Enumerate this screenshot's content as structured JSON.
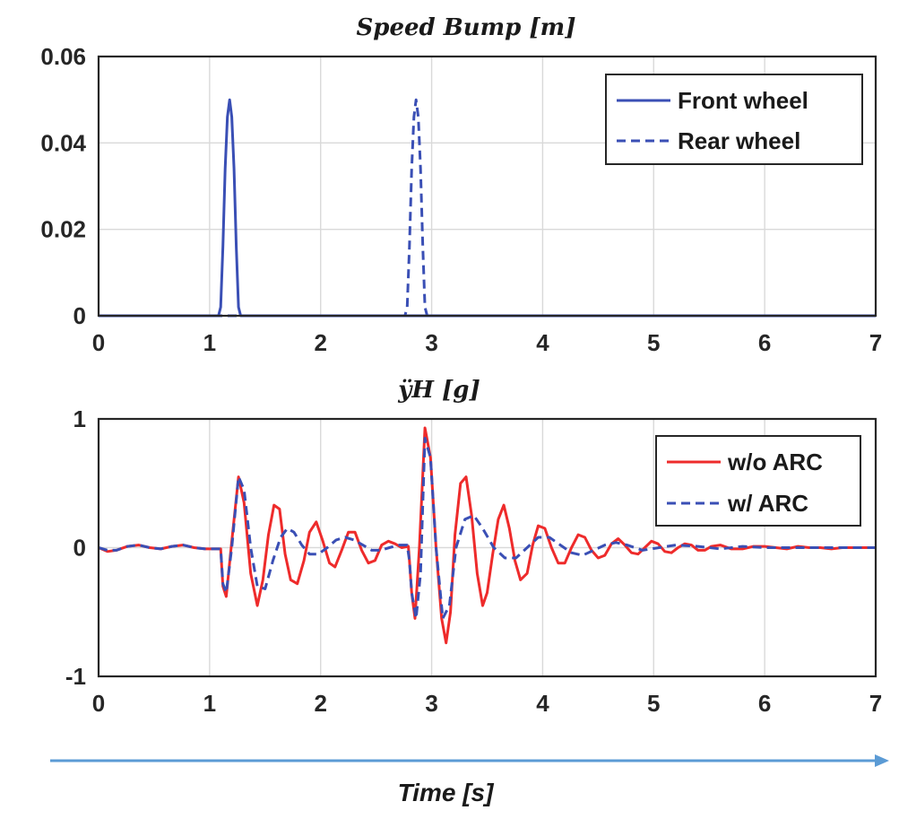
{
  "chart_data": [
    {
      "type": "line",
      "title": "Speed Bump [m]",
      "xlabel": "",
      "ylabel": "",
      "xlim": [
        0,
        7
      ],
      "ylim": [
        0,
        0.06
      ],
      "xticks": [
        0,
        1,
        2,
        3,
        4,
        5,
        6,
        7
      ],
      "xtick_labels": [
        "0",
        "1",
        "2",
        "3",
        "4",
        "5",
        "6",
        "7"
      ],
      "yticks": [
        0,
        0.02,
        0.04,
        0.06
      ],
      "ytick_labels": [
        "0",
        "0.02",
        "0.04",
        "0.06"
      ],
      "grid": true,
      "legend_position": "top-right",
      "series": [
        {
          "name": "Front wheel",
          "color": "#3a4fb5",
          "style": "solid",
          "x": [
            0,
            1.08,
            1.1,
            1.12,
            1.14,
            1.16,
            1.18,
            1.2,
            1.22,
            1.24,
            1.26,
            1.28,
            1.3,
            7
          ],
          "y": [
            0,
            0,
            0.002,
            0.016,
            0.034,
            0.046,
            0.05,
            0.046,
            0.034,
            0.016,
            0.002,
            0,
            0,
            0
          ]
        },
        {
          "name": "Rear wheel",
          "color": "#3a4fb5",
          "style": "dashed",
          "x": [
            0,
            2.76,
            2.78,
            2.8,
            2.82,
            2.84,
            2.86,
            2.88,
            2.9,
            2.92,
            2.94,
            2.96,
            2.98,
            7
          ],
          "y": [
            0,
            0,
            0.002,
            0.016,
            0.034,
            0.046,
            0.05,
            0.046,
            0.034,
            0.016,
            0.002,
            0,
            0,
            0
          ]
        }
      ]
    },
    {
      "type": "line",
      "title": "ÿH [g]",
      "xlabel": "Time [s]",
      "ylabel": "",
      "xlim": [
        0,
        7
      ],
      "ylim": [
        -1,
        1
      ],
      "xticks": [
        0,
        1,
        2,
        3,
        4,
        5,
        6,
        7
      ],
      "xtick_labels": [
        "0",
        "1",
        "2",
        "3",
        "4",
        "5",
        "6",
        "7"
      ],
      "yticks": [
        -1,
        0,
        1
      ],
      "ytick_labels": [
        "-1",
        "0",
        "1"
      ],
      "grid": true,
      "legend_position": "top-right",
      "series": [
        {
          "name": "w/o ARC",
          "color": "#ee2b2b",
          "style": "solid",
          "x": [
            0,
            0.08,
            0.16,
            0.26,
            0.36,
            0.46,
            0.56,
            0.66,
            0.76,
            0.86,
            0.96,
            1.06,
            1.1,
            1.12,
            1.15,
            1.2,
            1.26,
            1.31,
            1.37,
            1.43,
            1.48,
            1.53,
            1.58,
            1.63,
            1.68,
            1.73,
            1.79,
            1.85,
            1.9,
            1.96,
            2.02,
            2.08,
            2.13,
            2.19,
            2.25,
            2.31,
            2.37,
            2.43,
            2.49,
            2.55,
            2.61,
            2.67,
            2.73,
            2.79,
            2.8,
            2.82,
            2.85,
            2.89,
            2.94,
            2.99,
            3.04,
            3.09,
            3.13,
            3.17,
            3.21,
            3.26,
            3.31,
            3.36,
            3.41,
            3.46,
            3.5,
            3.55,
            3.6,
            3.65,
            3.7,
            3.75,
            3.8,
            3.86,
            3.91,
            3.96,
            4.02,
            4.08,
            4.14,
            4.2,
            4.26,
            4.32,
            4.38,
            4.44,
            4.5,
            4.56,
            4.62,
            4.68,
            4.74,
            4.8,
            4.86,
            4.92,
            4.98,
            5.04,
            5.1,
            5.16,
            5.22,
            5.28,
            5.34,
            5.4,
            5.46,
            5.52,
            5.6,
            5.7,
            5.8,
            5.9,
            6.0,
            6.1,
            6.2,
            6.3,
            6.4,
            6.5,
            6.6,
            6.7,
            6.8,
            6.9,
            7.0
          ],
          "y": [
            0,
            -0.03,
            -0.02,
            0.01,
            0.02,
            0.0,
            -0.01,
            0.01,
            0.02,
            0.0,
            -0.01,
            -0.01,
            -0.01,
            -0.3,
            -0.38,
            0.05,
            0.55,
            0.35,
            -0.2,
            -0.45,
            -0.25,
            0.1,
            0.33,
            0.3,
            -0.05,
            -0.25,
            -0.28,
            -0.1,
            0.12,
            0.2,
            0.05,
            -0.12,
            -0.15,
            -0.02,
            0.12,
            0.12,
            -0.02,
            -0.12,
            -0.1,
            0.02,
            0.05,
            0.03,
            0.0,
            0.01,
            -0.1,
            -0.35,
            -0.55,
            0.0,
            0.93,
            0.7,
            0.0,
            -0.55,
            -0.74,
            -0.5,
            0.1,
            0.5,
            0.55,
            0.25,
            -0.2,
            -0.45,
            -0.35,
            -0.05,
            0.22,
            0.33,
            0.15,
            -0.1,
            -0.25,
            -0.2,
            0.02,
            0.17,
            0.15,
            0.0,
            -0.12,
            -0.12,
            0.0,
            0.1,
            0.08,
            -0.02,
            -0.08,
            -0.06,
            0.03,
            0.07,
            0.02,
            -0.04,
            -0.05,
            0.0,
            0.05,
            0.03,
            -0.03,
            -0.04,
            0.0,
            0.03,
            0.02,
            -0.02,
            -0.02,
            0.01,
            0.02,
            -0.01,
            -0.01,
            0.01,
            0.01,
            0.0,
            -0.01,
            0.01,
            0.0,
            0.0,
            -0.01,
            0.0,
            0.0,
            0.0,
            0.0
          ]
        },
        {
          "name": "w/ ARC",
          "color": "#3a4fb5",
          "style": "dashed",
          "x": [
            0,
            0.08,
            0.16,
            0.26,
            0.36,
            0.46,
            0.56,
            0.66,
            0.76,
            0.86,
            0.96,
            1.06,
            1.1,
            1.12,
            1.15,
            1.2,
            1.26,
            1.31,
            1.37,
            1.43,
            1.5,
            1.57,
            1.64,
            1.7,
            1.76,
            1.83,
            1.9,
            1.98,
            2.06,
            2.14,
            2.22,
            2.3,
            2.38,
            2.46,
            2.54,
            2.62,
            2.7,
            2.78,
            2.8,
            2.82,
            2.86,
            2.9,
            2.94,
            2.99,
            3.04,
            3.1,
            3.16,
            3.22,
            3.3,
            3.38,
            3.46,
            3.56,
            3.66,
            3.76,
            3.86,
            3.96,
            4.06,
            4.16,
            4.26,
            4.36,
            4.46,
            4.56,
            4.66,
            4.76,
            4.9,
            5.05,
            5.2,
            5.4,
            5.6,
            5.8,
            6.0,
            6.2,
            6.4,
            6.6,
            6.8,
            7.0
          ],
          "y": [
            0,
            -0.02,
            -0.02,
            0.01,
            0.02,
            0.0,
            -0.01,
            0.01,
            0.02,
            0.0,
            -0.01,
            -0.01,
            -0.01,
            -0.28,
            -0.35,
            0.0,
            0.55,
            0.45,
            0.0,
            -0.3,
            -0.32,
            -0.1,
            0.08,
            0.15,
            0.12,
            0.02,
            -0.05,
            -0.05,
            0.0,
            0.06,
            0.08,
            0.06,
            0.02,
            -0.02,
            -0.02,
            0.0,
            0.02,
            0.02,
            -0.1,
            -0.35,
            -0.55,
            -0.2,
            0.85,
            0.7,
            0.0,
            -0.55,
            -0.45,
            0.0,
            0.22,
            0.25,
            0.15,
            0.0,
            -0.08,
            -0.08,
            0.0,
            0.08,
            0.08,
            0.02,
            -0.04,
            -0.06,
            -0.02,
            0.02,
            0.04,
            0.02,
            -0.02,
            0.0,
            0.02,
            0.01,
            -0.01,
            0.01,
            0.0,
            0.0,
            0.0,
            0.0,
            0.0,
            0.0
          ]
        }
      ]
    }
  ],
  "time_arrow_color": "#5b9bd5"
}
